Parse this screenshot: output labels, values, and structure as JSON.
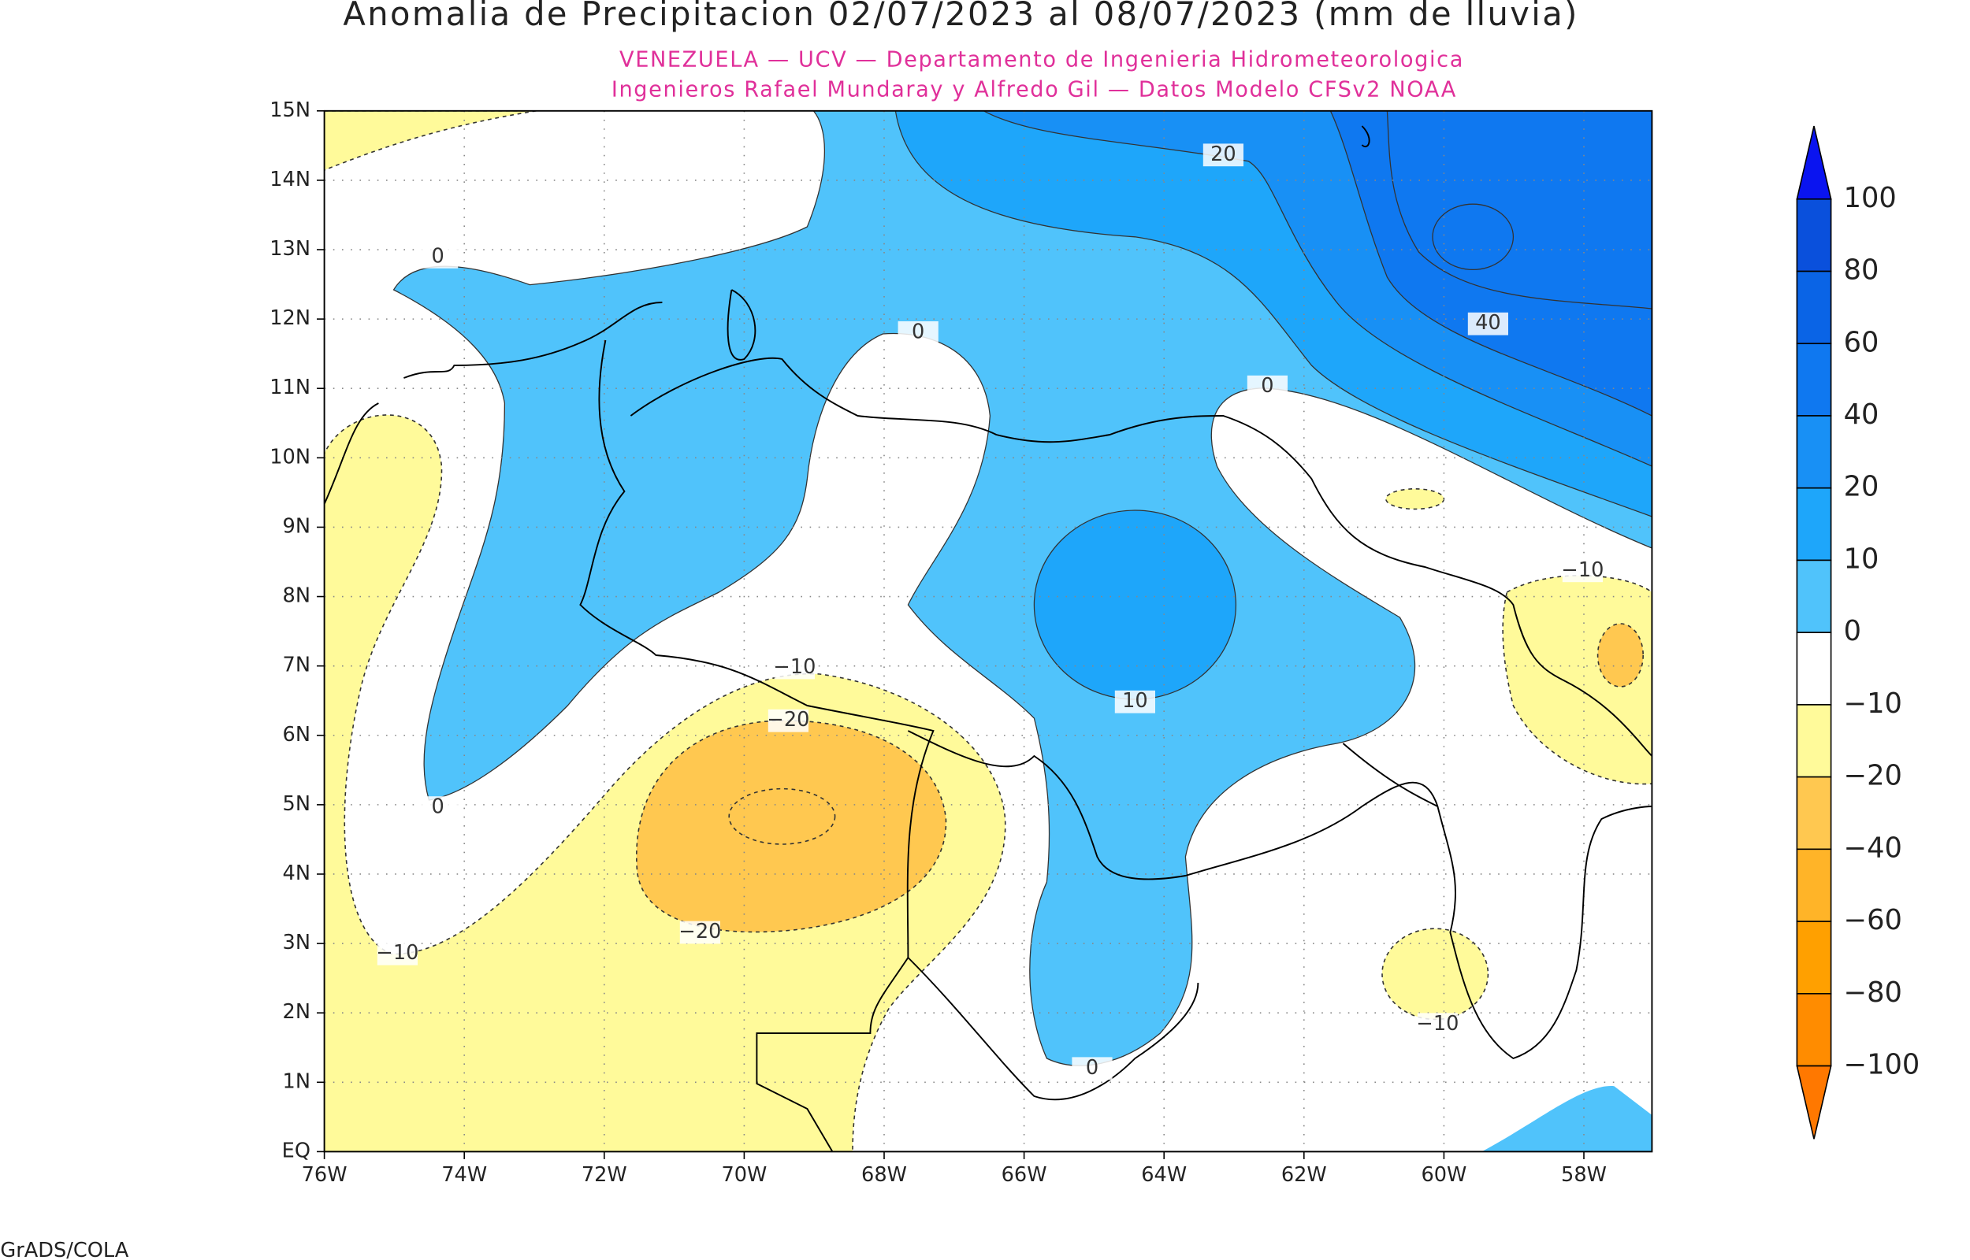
{
  "title": "Anomalia de Precipitacion 02/07/2023 al 08/07/2023 (mm de lluvia)",
  "subtitle": [
    "VENEZUELA — UCV — Departamento de Ingenieria Hidrometeorologica",
    "Ingenieros Rafael Mundaray y Alfredo Gil — Datos Modelo CFSv2 NOAA"
  ],
  "map": {
    "yticks": [
      "15N",
      "14N",
      "13N",
      "12N",
      "11N",
      "10N",
      "9N",
      "8N",
      "7N",
      "6N",
      "5N",
      "4N",
      "3N",
      "2N",
      "1N",
      "EQ"
    ],
    "xticks": [
      "76W",
      "74W",
      "72W",
      "70W",
      "68W",
      "66W",
      "64W",
      "62W",
      "60W",
      "58W"
    ],
    "contour_labels": [
      "0",
      "0",
      "0",
      "20",
      "40",
      "−10",
      "−20",
      "0",
      "10",
      "−10",
      "−20",
      "−10",
      "−10",
      "0"
    ]
  },
  "colorbar": {
    "labels": [
      "100",
      "80",
      "60",
      "40",
      "20",
      "10",
      "0",
      "−10",
      "−20",
      "−40",
      "−60",
      "−80",
      "−100"
    ],
    "colors": [
      "#0a14f0",
      "#0a50dc",
      "#0a64e6",
      "#0f78f0",
      "#1890f5",
      "#1ea6fa",
      "#50c3fb",
      "#ffffff",
      "#fffa9a",
      "#ffc850",
      "#ffb428",
      "#ffa000",
      "#ff8c00",
      "#ff7800"
    ]
  },
  "footer": "GrADS/COLA"
}
